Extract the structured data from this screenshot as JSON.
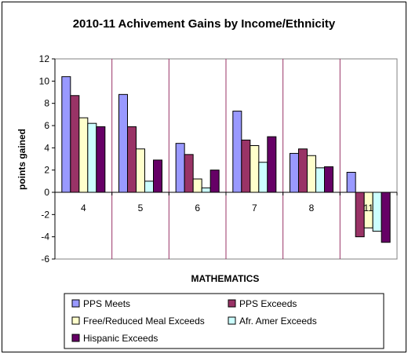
{
  "chart_data": {
    "type": "bar",
    "title": "2010-11 Achivement Gains by Income/Ethnicity",
    "xlabel": "MATHEMATICS",
    "ylabel": "points gained",
    "ylim": [
      -6,
      12
    ],
    "yticks": [
      12,
      10,
      8,
      6,
      4,
      2,
      0,
      -2,
      -4,
      -6
    ],
    "grid": false,
    "legend_position": "bottom",
    "categories": [
      "4",
      "5",
      "6",
      "7",
      "8",
      "11"
    ],
    "series": [
      {
        "name": "PPS Meets",
        "color": "#9999ff",
        "values": [
          10.4,
          8.8,
          4.4,
          7.3,
          3.5,
          1.8
        ]
      },
      {
        "name": "PPS Exceeds",
        "color": "#993366",
        "values": [
          8.7,
          5.9,
          3.4,
          4.7,
          3.9,
          -4.0
        ]
      },
      {
        "name": "Free/Reduced Meal Exceeds",
        "color": "#ffffcc",
        "values": [
          6.7,
          3.9,
          1.2,
          4.2,
          3.3,
          -3.2
        ]
      },
      {
        "name": "Afr. Amer Exceeds",
        "color": "#ccffff",
        "values": [
          6.2,
          1.0,
          0.4,
          2.7,
          2.2,
          -3.5
        ]
      },
      {
        "name": "Hispanic Exceeds",
        "color": "#660066",
        "values": [
          5.9,
          2.9,
          2.0,
          5.0,
          2.3,
          -4.5
        ]
      }
    ]
  }
}
